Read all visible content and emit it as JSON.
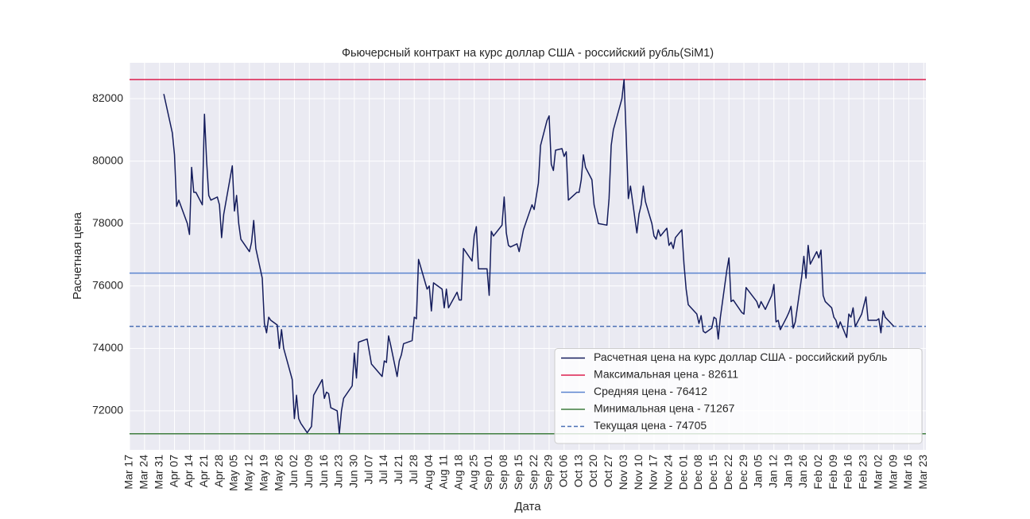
{
  "chart_data": {
    "type": "line",
    "title": "Фьючерсный контракт на курс доллар США - российский рубль(SiM1)",
    "x_label": "Дата",
    "y_label": "Расчетная цена",
    "xlim": [
      "Mar 17",
      "Mar 24"
    ],
    "ylim": [
      70750,
      83150
    ],
    "xticks": [
      "Mar 17",
      "Mar 24",
      "Mar 31",
      "Apr 07",
      "Apr 14",
      "Apr 21",
      "Apr 28",
      "May 05",
      "May 12",
      "May 19",
      "May 26",
      "Jun 02",
      "Jun 09",
      "Jun 16",
      "Jun 23",
      "Jun 30",
      "Jul 07",
      "Jul 14",
      "Jul 21",
      "Jul 28",
      "Aug 04",
      "Aug 11",
      "Aug 18",
      "Aug 25",
      "Sep 01",
      "Sep 08",
      "Sep 15",
      "Sep 22",
      "Sep 29",
      "Oct 06",
      "Oct 13",
      "Oct 20",
      "Oct 27",
      "Nov 03",
      "Nov 10",
      "Nov 17",
      "Nov 24",
      "Dec 01",
      "Dec 08",
      "Dec 15",
      "Dec 22",
      "Dec 29",
      "Jan 05",
      "Jan 12",
      "Jan 19",
      "Jan 26",
      "Feb 02",
      "Feb 09",
      "Feb 16",
      "Feb 23",
      "Mar 02",
      "Mar 09",
      "Mar 16",
      "Mar 23"
    ],
    "yticks": [
      72000,
      74000,
      76000,
      78000,
      80000,
      82000
    ],
    "grid": true,
    "legend": "lower right",
    "series": [
      {
        "name": "Расчетная цена на курс доллар США - российский рубль",
        "color": "#141c5c",
        "x": [
          "Apr 02",
          "Apr 06",
          "Apr 07",
          "Apr 08",
          "Apr 09",
          "Apr 13",
          "Apr 14",
          "Apr 15",
          "Apr 16",
          "Apr 17",
          "Apr 20",
          "Apr 21",
          "Apr 22",
          "Apr 23",
          "Apr 24",
          "Apr 27",
          "Apr 28",
          "Apr 29",
          "Apr 30",
          "May 04",
          "May 05",
          "May 06",
          "May 07",
          "May 08",
          "May 12",
          "May 13",
          "May 14",
          "May 15",
          "May 18",
          "May 19",
          "May 20",
          "May 21",
          "May 22",
          "May 25",
          "May 26",
          "May 27",
          "May 28",
          "Jun 01",
          "Jun 02",
          "Jun 03",
          "Jun 04",
          "Jun 05",
          "Jun 08",
          "Jun 09",
          "Jun 10",
          "Jun 11",
          "Jun 15",
          "Jun 16",
          "Jun 17",
          "Jun 18",
          "Jun 19",
          "Jun 22",
          "Jun 23",
          "Jun 24",
          "Jun 25",
          "Jun 29",
          "Jun 30",
          "Jul 01",
          "Jul 02",
          "Jul 06",
          "Jul 07",
          "Jul 08",
          "Jul 13",
          "Jul 14",
          "Jul 15",
          "Jul 16",
          "Jul 17",
          "Jul 20",
          "Jul 21",
          "Jul 22",
          "Jul 23",
          "Jul 27",
          "Jul 28",
          "Jul 29",
          "Jul 30",
          "Aug 03",
          "Aug 04",
          "Aug 05",
          "Aug 06",
          "Aug 10",
          "Aug 11",
          "Aug 12",
          "Aug 13",
          "Aug 17",
          "Aug 18",
          "Aug 19",
          "Aug 20",
          "Aug 24",
          "Aug 25",
          "Aug 26",
          "Aug 27",
          "Aug 31",
          "Sep 01",
          "Sep 02",
          "Sep 03",
          "Sep 07",
          "Sep 08",
          "Sep 09",
          "Sep 10",
          "Sep 11",
          "Sep 14",
          "Sep 15",
          "Sep 17",
          "Sep 21",
          "Sep 22",
          "Sep 24",
          "Sep 25",
          "Sep 28",
          "Sep 29",
          "Sep 30",
          "Oct 01",
          "Oct 02",
          "Oct 05",
          "Oct 06",
          "Oct 07",
          "Oct 08",
          "Oct 12",
          "Oct 13",
          "Oct 14",
          "Oct 15",
          "Oct 16",
          "Oct 19",
          "Oct 20",
          "Oct 22",
          "Oct 26",
          "Oct 27",
          "Oct 28",
          "Oct 29",
          "Nov 02",
          "Nov 03",
          "Nov 04",
          "Nov 05",
          "Nov 06",
          "Nov 09",
          "Nov 10",
          "Nov 11",
          "Nov 12",
          "Nov 13",
          "Nov 16",
          "Nov 17",
          "Nov 18",
          "Nov 19",
          "Nov 20",
          "Nov 23",
          "Nov 24",
          "Nov 25",
          "Nov 26",
          "Nov 27",
          "Nov 30",
          "Dec 01",
          "Dec 02",
          "Dec 03",
          "Dec 07",
          "Dec 08",
          "Dec 09",
          "Dec 10",
          "Dec 11",
          "Dec 14",
          "Dec 15",
          "Dec 16",
          "Dec 17",
          "Dec 18",
          "Dec 21",
          "Dec 22",
          "Dec 23",
          "Dec 24",
          "Dec 28",
          "Dec 29",
          "Dec 30",
          "Jan 04",
          "Jan 05",
          "Jan 06",
          "Jan 08",
          "Jan 11",
          "Jan 12",
          "Jan 13",
          "Jan 14",
          "Jan 15",
          "Jan 18",
          "Jan 19",
          "Jan 20",
          "Jan 21",
          "Jan 22",
          "Jan 25",
          "Jan 26",
          "Jan 27",
          "Jan 28",
          "Jan 29",
          "Feb 01",
          "Feb 02",
          "Feb 03",
          "Feb 04",
          "Feb 05",
          "Feb 08",
          "Feb 09",
          "Feb 10",
          "Feb 11",
          "Feb 12",
          "Feb 15",
          "Feb 16",
          "Feb 17",
          "Feb 18",
          "Feb 19",
          "Feb 22",
          "Feb 24",
          "Feb 25",
          "Mar 01",
          "Mar 02",
          "Mar 03",
          "Mar 04",
          "Mar 05",
          "Mar 09"
        ],
        "values": [
          82150,
          80900,
          80200,
          78550,
          78750,
          78000,
          77650,
          79800,
          79000,
          79000,
          78600,
          81500,
          80000,
          78900,
          78750,
          78850,
          78600,
          77550,
          78300,
          79850,
          78400,
          78900,
          78000,
          77500,
          77100,
          77400,
          78100,
          77200,
          76250,
          74800,
          74500,
          75000,
          74900,
          74750,
          74000,
          74600,
          74000,
          73000,
          71750,
          72500,
          71750,
          71600,
          71300,
          71400,
          71500,
          72500,
          73000,
          72400,
          72600,
          72550,
          72100,
          72000,
          71267,
          72000,
          72400,
          72800,
          73850,
          73050,
          74200,
          74300,
          73900,
          73500,
          73100,
          73600,
          73550,
          74400,
          74100,
          73100,
          73600,
          73800,
          74150,
          74250,
          75000,
          74950,
          76850,
          75900,
          76000,
          75200,
          76100,
          75900,
          75300,
          75900,
          75300,
          75800,
          75550,
          75550,
          77200,
          76800,
          77600,
          77900,
          76550,
          76550,
          75700,
          77750,
          77600,
          77950,
          78850,
          77700,
          77300,
          77250,
          77350,
          77100,
          77800,
          78600,
          78450,
          79300,
          80500,
          81300,
          81450,
          79900,
          79700,
          80350,
          80400,
          80150,
          80300,
          78750,
          79000,
          79000,
          79400,
          80200,
          79800,
          79400,
          78600,
          78000,
          77950,
          78800,
          80500,
          81000,
          82000,
          82611,
          80800,
          78800,
          79200,
          77700,
          78300,
          78600,
          79200,
          78700,
          78000,
          77600,
          77500,
          77800,
          77600,
          77850,
          77300,
          77400,
          77200,
          77550,
          77800,
          76700,
          75900,
          75400,
          75100,
          74800,
          75050,
          74550,
          74500,
          74650,
          75000,
          74950,
          74300,
          75000,
          76500,
          76900,
          75500,
          75550,
          75150,
          75100,
          75950,
          75500,
          75300,
          75500,
          75250,
          75700,
          76050,
          74850,
          74900,
          74600,
          75000,
          75150,
          75350,
          74650,
          74850,
          76300,
          76950,
          76250,
          77300,
          76700,
          77100,
          76900,
          77150,
          75700,
          75500,
          75300,
          75000,
          74900,
          74650,
          74850,
          74350,
          75100,
          75000,
          75300,
          74700,
          75100,
          75650,
          74900,
          74900,
          74950,
          74500,
          75200,
          75000,
          74705
        ]
      }
    ],
    "hlines": [
      {
        "name": "Максимальная цена - 82611",
        "value": 82611,
        "color": "#dc1f4e",
        "dashed": false
      },
      {
        "name": "Средняя цена - 76412",
        "value": 76412,
        "color": "#5b84cf",
        "dashed": false
      },
      {
        "name": "Минимальная цена - 71267",
        "value": 71267,
        "color": "#3f7d3f",
        "dashed": false
      },
      {
        "name": "Текущая цена - 74705",
        "value": 74705,
        "color": "#4a6fb5",
        "dashed": true
      }
    ]
  }
}
